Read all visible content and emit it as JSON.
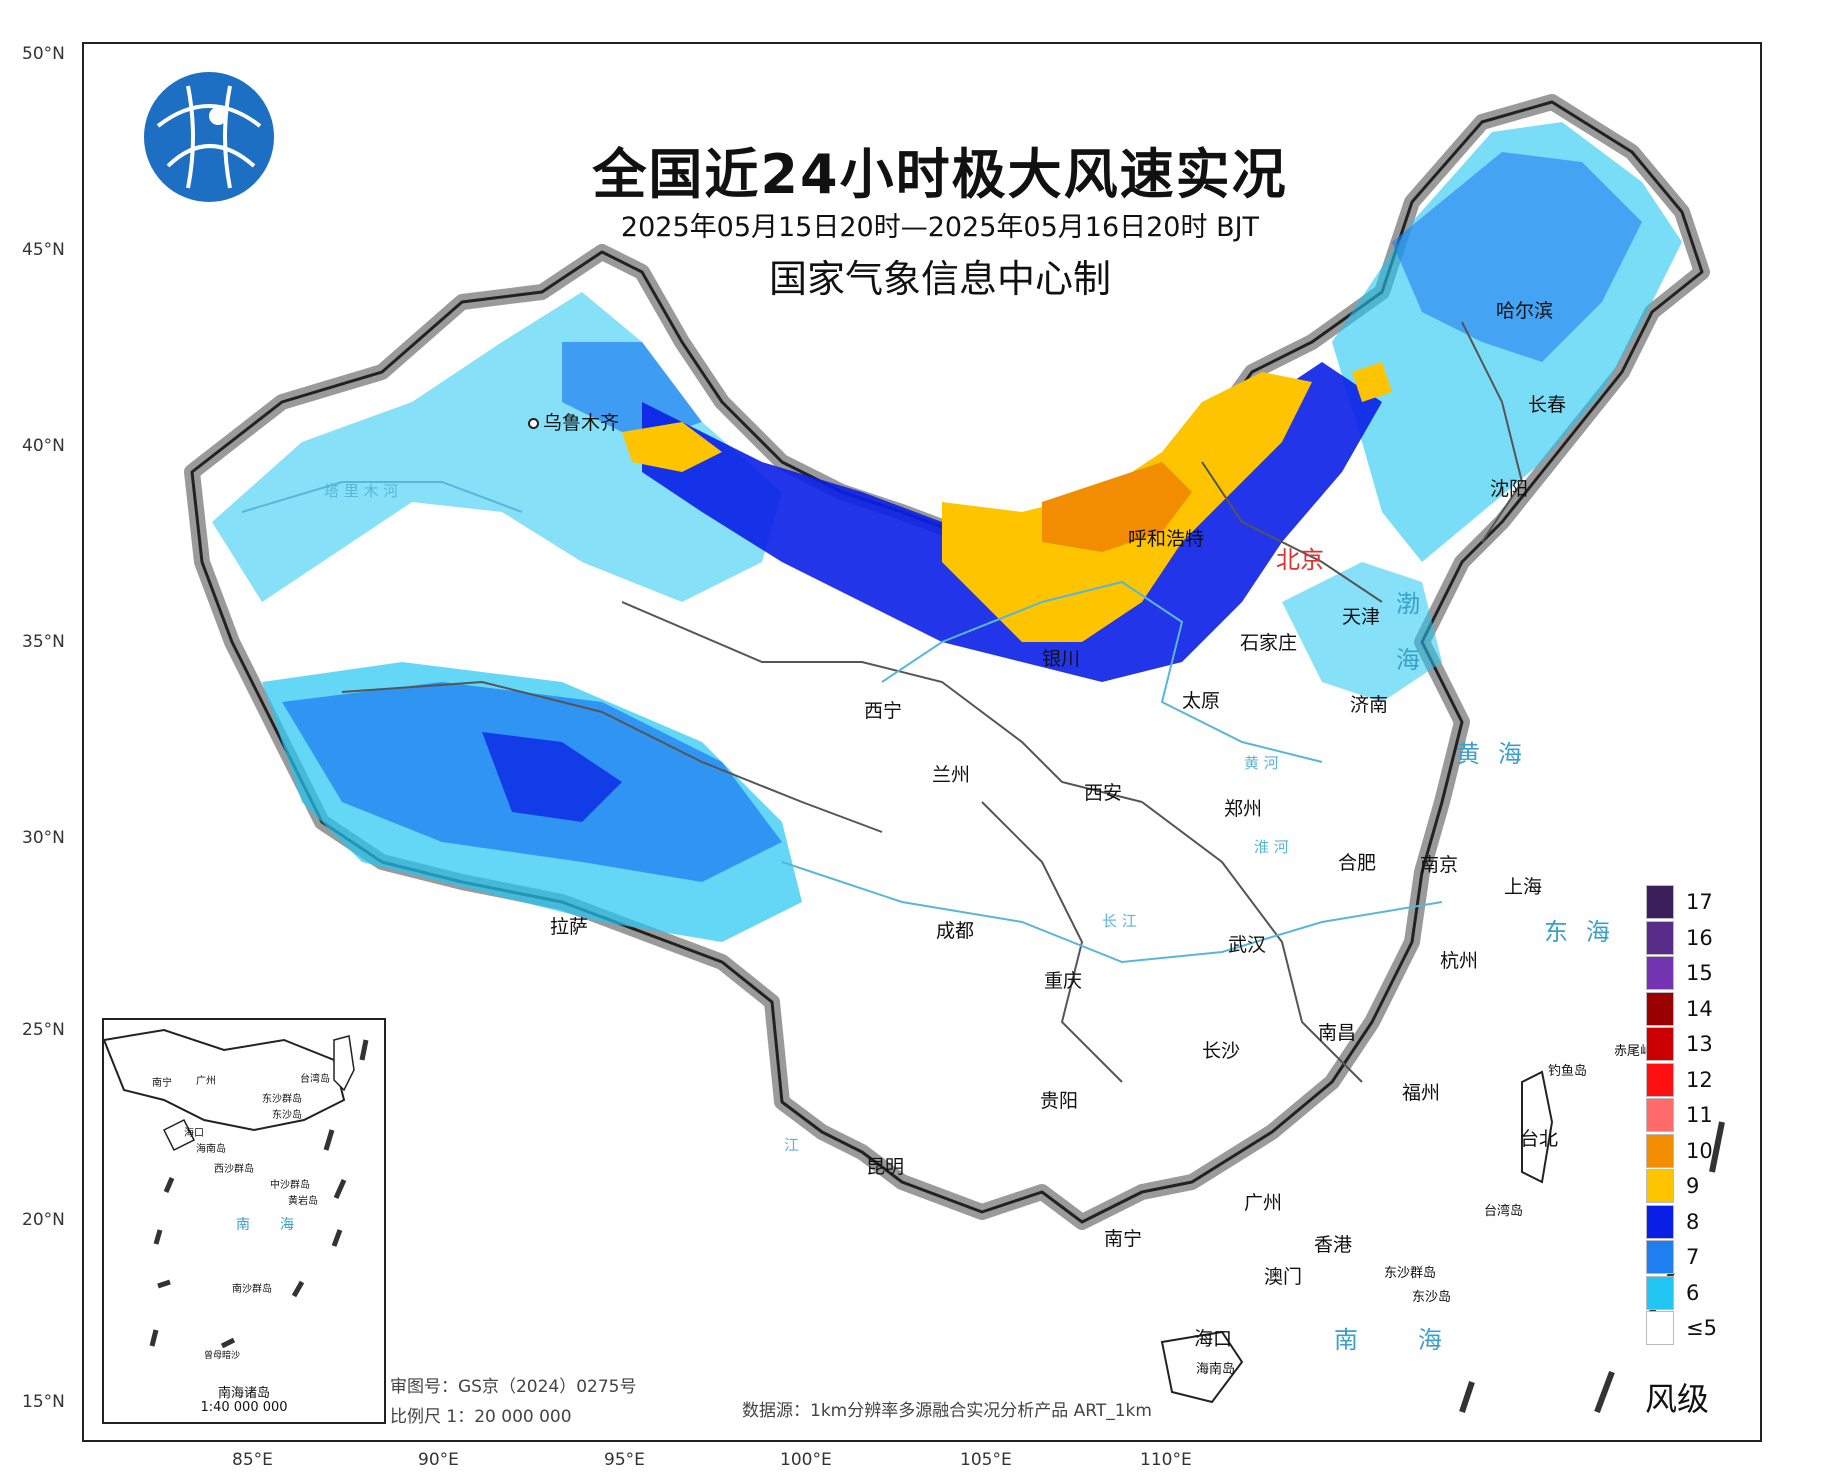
{
  "map": {
    "title": "全国近24小时极大风速实况",
    "subtitle": "2025年05月15日20时—2025年05月16日20时 BJT",
    "maker": "国家气象信息中心制",
    "review_no": "审图号：GS京（2024）0275号",
    "scale": "比例尺 1：20 000 000",
    "source": "数据源：1km分辨率多源融合实况分析产品 ART_1km",
    "lat_labels": [
      "50°N",
      "45°N",
      "40°N",
      "35°N",
      "30°N",
      "25°N",
      "20°N",
      "15°N"
    ],
    "lon_labels": [
      "85°E",
      "90°E",
      "95°E",
      "100°E",
      "105°E",
      "110°E"
    ]
  },
  "cities": {
    "urumqi": "乌鲁木齐",
    "lhasa": "拉萨",
    "xining": "西宁",
    "lanzhou": "兰州",
    "yinchuan": "银川",
    "hohhot": "呼和浩特",
    "beijing": "北京",
    "tianjin": "天津",
    "shijiazhuang": "石家庄",
    "taiyuan": "太原",
    "jinan": "济南",
    "xian": "西安",
    "zhengzhou": "郑州",
    "chengdu": "成都",
    "chongqing": "重庆",
    "wuhan": "武汉",
    "hefei": "合肥",
    "nanjing": "南京",
    "shanghai": "上海",
    "hangzhou": "杭州",
    "changsha": "长沙",
    "nanchang": "南昌",
    "fuzhou": "福州",
    "guiyang": "贵阳",
    "kunming": "昆明",
    "nanning": "南宁",
    "guangzhou": "广州",
    "hongkong": "香港",
    "macau": "澳门",
    "haikou": "海口",
    "taipei": "台北",
    "harbin": "哈尔滨",
    "changchun": "长春",
    "shenyang": "沈阳"
  },
  "seas": {
    "bohai": "渤海",
    "huanghai": "黄海",
    "donghai": "东海",
    "nanhai": "南海"
  },
  "rivers": {
    "tarim": "塔 里 木 河",
    "huanghe": "黄 河",
    "changjiang": "长 江",
    "huaihe": "淮 河",
    "zhujiang": "江"
  },
  "islands": {
    "hainan": "海南岛",
    "taiwan": "台湾岛",
    "dongsha": "东沙群岛",
    "dongsha_dao": "东沙岛",
    "diaoyu": "钓鱼岛",
    "chiwei": "赤尾屿"
  },
  "inset": {
    "title": "南海诸岛",
    "scale": "1:40 000 000",
    "labels": [
      "南宁",
      "广州",
      "台湾岛",
      "东沙群岛",
      "东沙岛",
      "海口",
      "海南岛",
      "西沙群岛",
      "中沙群岛",
      "黄岩岛",
      "南",
      "海",
      "南沙群岛",
      "曾母暗沙"
    ]
  },
  "legend": {
    "title": "风级",
    "items": [
      {
        "label": "17",
        "color": "#3b1f5a"
      },
      {
        "label": "16",
        "color": "#5a2c8a"
      },
      {
        "label": "15",
        "color": "#7433b0"
      },
      {
        "label": "14",
        "color": "#9a0000"
      },
      {
        "label": "13",
        "color": "#cc0000"
      },
      {
        "label": "12",
        "color": "#ff1010"
      },
      {
        "label": "11",
        "color": "#ff6a6a"
      },
      {
        "label": "10",
        "color": "#f28c00"
      },
      {
        "label": "9",
        "color": "#ffc400"
      },
      {
        "label": "8",
        "color": "#0a1fe6"
      },
      {
        "label": "7",
        "color": "#1f7ff0"
      },
      {
        "label": "6",
        "color": "#22c6f2"
      },
      {
        "label": "≤5",
        "color": "#ffffff"
      }
    ]
  }
}
